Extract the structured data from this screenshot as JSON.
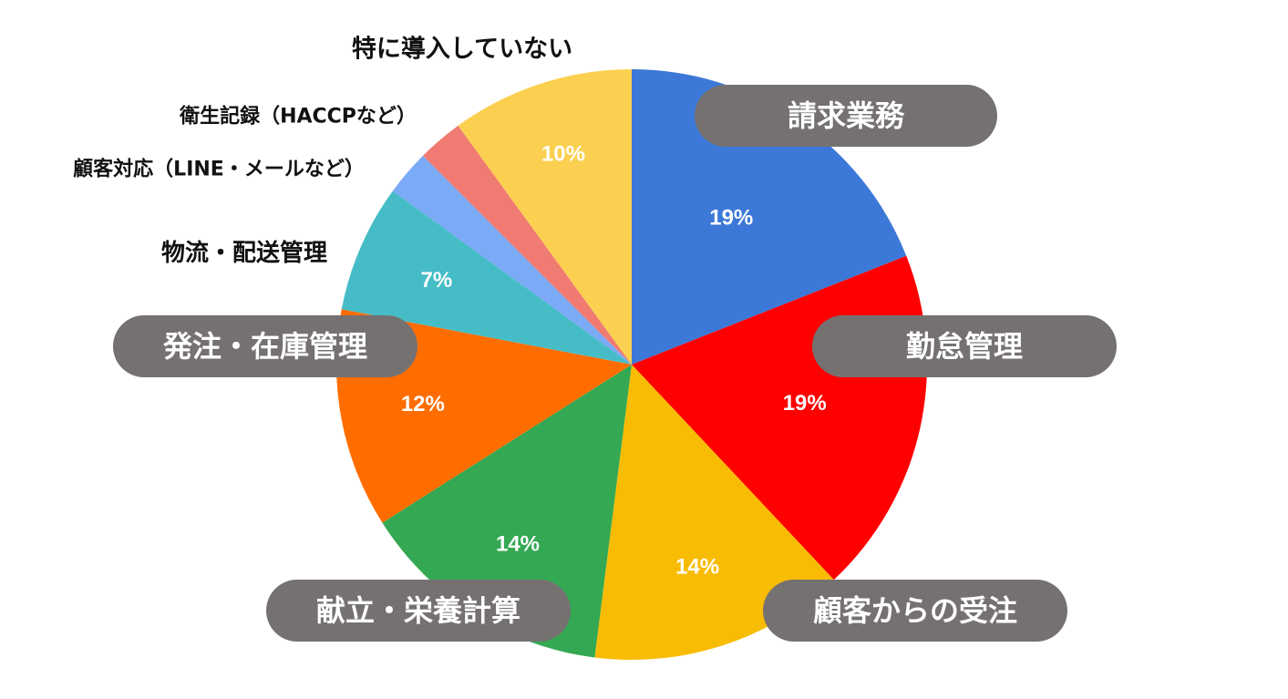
{
  "chart_data": {
    "type": "pie",
    "start_angle_deg": 0,
    "direction": "clockwise",
    "slices": [
      {
        "label": "請求業務",
        "value": 19,
        "display": "19%",
        "color": "#3c78d8",
        "label_style": "pill"
      },
      {
        "label": "勤怠管理",
        "value": 19,
        "display": "19%",
        "color": "#ff0000",
        "label_style": "pill"
      },
      {
        "label": "顧客からの受注",
        "value": 14,
        "display": "14%",
        "color": "#f9bc05",
        "label_style": "pill"
      },
      {
        "label": "献立・栄養計算",
        "value": 14,
        "display": "14%",
        "color": "#34a853",
        "label_style": "pill"
      },
      {
        "label": "発注・在庫管理",
        "value": 12,
        "display": "12%",
        "color": "#ff6d00",
        "label_style": "pill"
      },
      {
        "label": "物流・配送管理",
        "value": 7,
        "display": "7%",
        "color": "#46bdc6",
        "label_style": "plain"
      },
      {
        "label": "顧客対応（LINE・メールなど）",
        "value": 2.5,
        "display": "",
        "color": "#7baaf7",
        "label_style": "plain"
      },
      {
        "label": "衛生記録（HACCPなど）",
        "value": 2.5,
        "display": "",
        "color": "#f07b72",
        "label_style": "plain"
      },
      {
        "label": "特に導入していない",
        "value": 10,
        "display": "10%",
        "color": "#fbd050",
        "label_style": "plain"
      }
    ],
    "pill_color": "#767171"
  }
}
